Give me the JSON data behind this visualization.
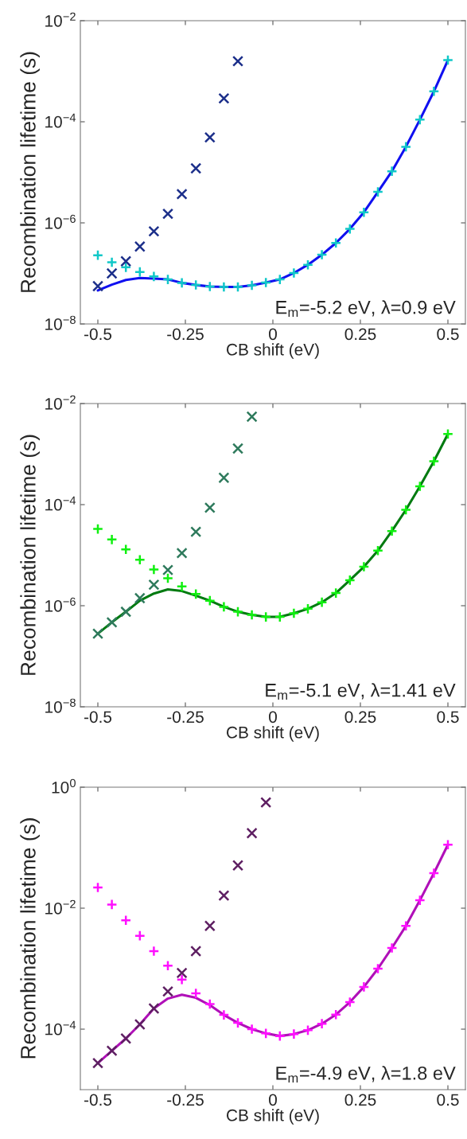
{
  "chart_data": [
    {
      "type": "scatter",
      "xlabel": "CB shift (eV)",
      "ylabel": "Recombination lifetime (s)",
      "log": "y",
      "grid": false,
      "legend": false,
      "xlim": [
        -0.55,
        0.55
      ],
      "xticks": [
        -0.5,
        -0.25,
        0,
        0.25,
        0.5
      ],
      "ylim": [
        1e-08,
        0.01
      ],
      "yticks": [
        {
          "value": 1e-08,
          "label": "10$^{−8}$"
        },
        {
          "value": 1e-06,
          "label": "10$^{−6}$"
        },
        {
          "value": 0.0001,
          "label": "10$^{−4}$"
        },
        {
          "value": 0.01,
          "label": "10$^{−2}$"
        }
      ],
      "annotations": [
        "E$_{m}$=-5.2 eV, λ=0.9 eV"
      ],
      "series": [
        {
          "type": "line",
          "color": "#1010f0",
          "marker": "none",
          "line_style": "solid",
          "x": [
            -0.5,
            -0.46,
            -0.42,
            -0.38,
            -0.34,
            -0.3,
            -0.26,
            -0.22,
            -0.18,
            -0.14,
            -0.1,
            -0.06,
            -0.02,
            0.02,
            0.06,
            0.1,
            0.14,
            0.18,
            0.22,
            0.26,
            0.3,
            0.34,
            0.38,
            0.42,
            0.46,
            0.5
          ],
          "values": [
            4.6e-08,
            6e-08,
            7.4e-08,
            8.1e-08,
            7.9e-08,
            7.6e-08,
            6.5e-08,
            5.9e-08,
            5.5e-08,
            5.4e-08,
            5.4e-08,
            5.8e-08,
            6.6e-08,
            7.6e-08,
            1.02e-07,
            1.48e-07,
            2.34e-07,
            4e-07,
            7.6e-07,
            1.62e-06,
            4.1e-06,
            1.05e-05,
            3.2e-05,
            0.00011,
            0.0004,
            0.00166
          ]
        },
        {
          "color": "#10c8c8",
          "marker": "plus",
          "x": [
            -0.5,
            -0.46,
            -0.42,
            -0.38,
            -0.34,
            -0.3,
            -0.26,
            -0.22,
            -0.18,
            -0.14,
            -0.1,
            -0.06,
            -0.02,
            0.02,
            0.06,
            0.1,
            0.14,
            0.18,
            0.22,
            0.26,
            0.3,
            0.34,
            0.38,
            0.42,
            0.46,
            0.5
          ],
          "values": [
            2.29e-07,
            1.66e-07,
            1.32e-07,
            1.07e-07,
            8.7e-08,
            7.6e-08,
            6.5e-08,
            5.9e-08,
            5.5e-08,
            5.4e-08,
            5.4e-08,
            5.8e-08,
            6.6e-08,
            7.6e-08,
            1.02e-07,
            1.48e-07,
            2.34e-07,
            4e-07,
            7.6e-07,
            1.62e-06,
            4.1e-06,
            1.05e-05,
            3.2e-05,
            0.00011,
            0.0004,
            0.00166
          ]
        },
        {
          "color": "#1c2f8a",
          "marker": "cross",
          "x": [
            -0.5,
            -0.46,
            -0.42,
            -0.38,
            -0.34,
            -0.3,
            -0.26,
            -0.22,
            -0.18,
            -0.14,
            -0.1
          ],
          "values": [
            5.6e-08,
            1e-07,
            1.74e-07,
            3.4e-07,
            6.8e-07,
            1.51e-06,
            3.7e-06,
            1.2e-05,
            4.9e-05,
            0.00029,
            0.00158
          ]
        }
      ]
    },
    {
      "type": "scatter",
      "xlabel": "CB shift (eV)",
      "ylabel": "Recombination lifetime (s)",
      "log": "y",
      "grid": false,
      "legend": false,
      "xlim": [
        -0.55,
        0.55
      ],
      "xticks": [
        -0.5,
        -0.25,
        0,
        0.25,
        0.5
      ],
      "ylim": [
        1e-08,
        0.01
      ],
      "yticks": [
        {
          "value": 1e-08,
          "label": "10$^{−8}$"
        },
        {
          "value": 1e-06,
          "label": "10$^{−6}$"
        },
        {
          "value": 0.0001,
          "label": "10$^{−4}$"
        },
        {
          "value": 0.01,
          "label": "10$^{−2}$"
        }
      ],
      "annotations": [
        "E$_{m}$=-5.1 eV, λ=1.41 eV"
      ],
      "series": [
        {
          "type": "line",
          "color": "#007a10",
          "marker": "none",
          "line_style": "solid",
          "x": [
            -0.5,
            -0.46,
            -0.42,
            -0.38,
            -0.34,
            -0.3,
            -0.26,
            -0.22,
            -0.18,
            -0.14,
            -0.1,
            -0.06,
            -0.02,
            0.02,
            0.06,
            0.1,
            0.14,
            0.18,
            0.22,
            0.26,
            0.3,
            0.34,
            0.38,
            0.42,
            0.46,
            0.5
          ],
          "values": [
            2.8e-07,
            4.7e-07,
            7.6e-07,
            1.26e-06,
            1.74e-06,
            2.1e-06,
            1.95e-06,
            1.58e-06,
            1.26e-06,
            9.5e-07,
            7.6e-07,
            6.6e-07,
            6e-07,
            6e-07,
            7.1e-07,
            8.7e-07,
            1.17e-06,
            1.78e-06,
            3.2e-06,
            5.9e-06,
            1.23e-05,
            3e-05,
            7.9e-05,
            0.00023,
            0.00072,
            0.0025
          ]
        },
        {
          "color": "#10f010",
          "marker": "plus",
          "x": [
            -0.5,
            -0.46,
            -0.42,
            -0.38,
            -0.34,
            -0.3,
            -0.26,
            -0.22,
            -0.18,
            -0.14,
            -0.1,
            -0.06,
            -0.02,
            0.02,
            0.06,
            0.1,
            0.14,
            0.18,
            0.22,
            0.26,
            0.3,
            0.34,
            0.38,
            0.42,
            0.46,
            0.5
          ],
          "values": [
            3.3e-05,
            2.04e-05,
            1.3e-05,
            8.1e-06,
            5.2e-06,
            3.5e-06,
            2.4e-06,
            1.7e-06,
            1.26e-06,
            9.5e-07,
            7.6e-07,
            6.6e-07,
            6e-07,
            6e-07,
            7.1e-07,
            8.7e-07,
            1.17e-06,
            1.78e-06,
            3.2e-06,
            5.9e-06,
            1.23e-05,
            3e-05,
            7.9e-05,
            0.00023,
            0.00072,
            0.0025
          ]
        },
        {
          "color": "#2e7a5c",
          "marker": "cross",
          "x": [
            -0.5,
            -0.46,
            -0.42,
            -0.38,
            -0.34,
            -0.3,
            -0.26,
            -0.22,
            -0.18,
            -0.14,
            -0.1,
            -0.06
          ],
          "values": [
            2.8e-07,
            4.7e-07,
            7.6e-07,
            1.41e-06,
            2.6e-06,
            5.1e-06,
            1.1e-05,
            2.9e-05,
            8.7e-05,
            0.00034,
            0.00129,
            0.0055
          ]
        }
      ]
    },
    {
      "type": "scatter",
      "xlabel": "CB shift (eV)",
      "ylabel": "Recombination lifetime (s)",
      "log": "y",
      "grid": false,
      "legend": false,
      "xlim": [
        -0.55,
        0.55
      ],
      "xticks": [
        -0.5,
        -0.25,
        0,
        0.25,
        0.5
      ],
      "ylim": [
        1e-05,
        1
      ],
      "yticks": [
        {
          "value": 0.0001,
          "label": "10$^{−4}$"
        },
        {
          "value": 0.01,
          "label": "10$^{−2}$"
        },
        {
          "value": 1,
          "label": "10$^{0}$"
        }
      ],
      "annotations": [
        "E$_{m}$=-4.9 eV, λ=1.8 eV"
      ],
      "series": [
        {
          "type": "line",
          "color": "#b010b8",
          "marker": "none",
          "line_style": "solid",
          "x": [
            -0.5,
            -0.46,
            -0.42,
            -0.38,
            -0.34,
            -0.3,
            -0.26,
            -0.22,
            -0.18,
            -0.14,
            -0.1,
            -0.06,
            -0.02,
            0.02,
            0.06,
            0.1,
            0.14,
            0.18,
            0.22,
            0.26,
            0.3,
            0.34,
            0.38,
            0.42,
            0.46,
            0.5
          ],
          "values": [
            2.75e-05,
            4.4e-05,
            7e-05,
            0.00012,
            0.00022,
            0.00032,
            0.00037,
            0.00033,
            0.00025,
            0.000172,
            0.000127,
            0.0001,
            8.5e-05,
            7.7e-05,
            8.3e-05,
            9.6e-05,
            0.000123,
            0.000174,
            0.00028,
            0.0005,
            0.001,
            0.0022,
            0.0051,
            0.0135,
            0.038,
            0.112
          ]
        },
        {
          "color": "#ff10ff",
          "marker": "plus",
          "x": [
            -0.5,
            -0.46,
            -0.42,
            -0.38,
            -0.34,
            -0.3,
            -0.26,
            -0.22,
            -0.18,
            -0.14,
            -0.1,
            -0.06,
            -0.02,
            0.02,
            0.06,
            0.1,
            0.14,
            0.18,
            0.22,
            0.26,
            0.3,
            0.34,
            0.38,
            0.42,
            0.46,
            0.5
          ],
          "values": [
            0.022,
            0.0115,
            0.0063,
            0.0035,
            0.00195,
            0.00112,
            0.00066,
            0.00039,
            0.00026,
            0.000172,
            0.000127,
            0.0001,
            8.5e-05,
            7.7e-05,
            8.3e-05,
            9.6e-05,
            0.000123,
            0.000174,
            0.00028,
            0.0005,
            0.001,
            0.0022,
            0.0051,
            0.0135,
            0.038,
            0.112
          ]
        },
        {
          "color": "#5e1f62",
          "marker": "cross",
          "x": [
            -0.5,
            -0.46,
            -0.42,
            -0.38,
            -0.34,
            -0.3,
            -0.26,
            -0.22,
            -0.18,
            -0.14,
            -0.1,
            -0.06,
            -0.02
          ],
          "values": [
            2.75e-05,
            4.4e-05,
            7e-05,
            0.00012,
            0.00022,
            0.00042,
            0.00085,
            0.00195,
            0.0051,
            0.0162,
            0.051,
            0.174,
            0.56
          ]
        }
      ]
    }
  ]
}
